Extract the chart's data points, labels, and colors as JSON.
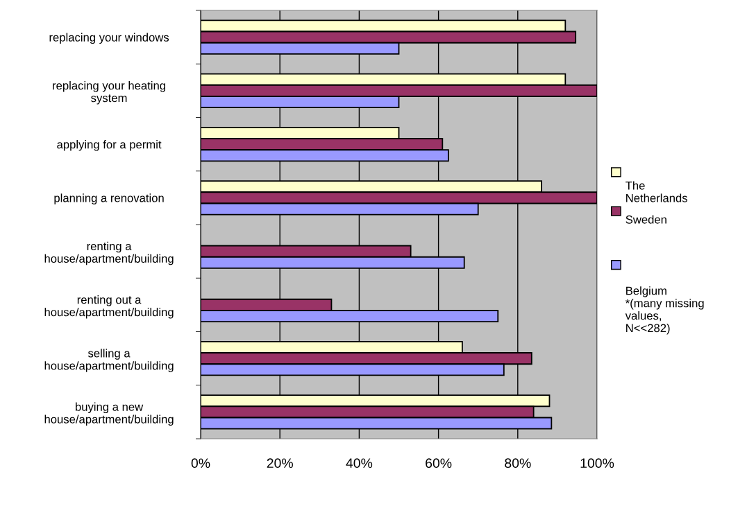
{
  "chart_data": {
    "type": "bar",
    "orientation": "horizontal",
    "categories": [
      "replacing your windows",
      "replacing your heating\nsystem",
      "applying for a permit",
      "planning a renovation",
      "renting a\nhouse/apartment/building",
      "renting out a\nhouse/apartment/building",
      "selling a\nhouse/apartment/building",
      "buying a new\nhouse/apartment/building"
    ],
    "series": [
      {
        "name": "The\nNetherlands",
        "color": "#ffffcc",
        "values": [
          92,
          92,
          50,
          86,
          null,
          null,
          66,
          88
        ]
      },
      {
        "name": "Sweden",
        "color": "#993366",
        "values": [
          94.6,
          100,
          61,
          100,
          53,
          33,
          83.5,
          84
        ]
      },
      {
        "name": "Belgium\n*(many missing\nvalues,\nN<<282)",
        "color": "#9999ff",
        "values": [
          50,
          50,
          62.5,
          70,
          66.5,
          75,
          76.5,
          88.5
        ]
      }
    ],
    "xlim": [
      0,
      100
    ],
    "xticks": [
      {
        "value": 0,
        "label": "0%"
      },
      {
        "value": 20,
        "label": "20%"
      },
      {
        "value": 40,
        "label": "40%"
      },
      {
        "value": 60,
        "label": "60%"
      },
      {
        "value": 80,
        "label": "80%"
      },
      {
        "value": 100,
        "label": "100%"
      }
    ],
    "grid": "x",
    "legend": "right"
  }
}
